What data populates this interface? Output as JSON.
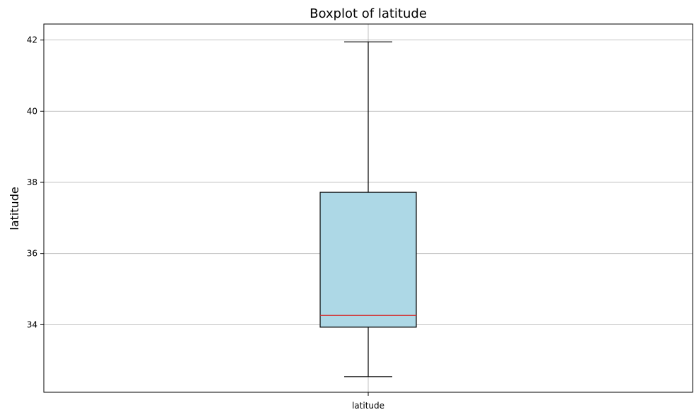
{
  "chart_data": {
    "type": "boxplot",
    "title": "Boxplot of latitude",
    "ylabel": "latitude",
    "categories": [
      "latitude"
    ],
    "boxes": [
      {
        "category": "latitude",
        "whisker_low": 32.54,
        "q1": 33.93,
        "median": 34.26,
        "q3": 37.72,
        "whisker_high": 41.95
      }
    ],
    "ylim": [
      32.1,
      42.45
    ],
    "yticks": [
      34,
      36,
      38,
      40,
      42
    ],
    "grid": true,
    "colors": {
      "box_fill": "#add8e6",
      "box_edge": "#000000",
      "median": "#d62728",
      "grid": "#b0b0b0"
    }
  }
}
